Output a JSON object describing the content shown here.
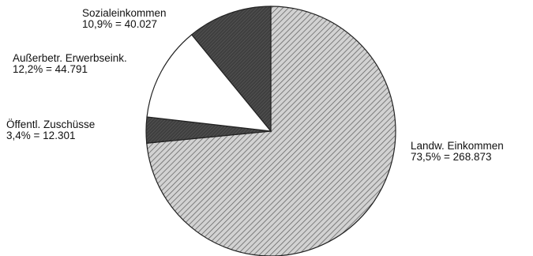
{
  "chart_data": {
    "type": "pie",
    "title": "",
    "slices": [
      {
        "name": "Landw. Einkommen",
        "percent_label": "73,5%",
        "value_label": "268.873",
        "value": 268873,
        "percent": 73.5,
        "fill": "hatch-light"
      },
      {
        "name": "Öffentl. Zuschüsse",
        "percent_label": "3,4%",
        "value_label": "12.301",
        "value": 12301,
        "percent": 3.4,
        "fill": "dark"
      },
      {
        "name": "Außerbetr. Erwerbseink.",
        "percent_label": "12,2%",
        "value_label": "44.791",
        "value": 44791,
        "percent": 12.2,
        "fill": "white"
      },
      {
        "name": "Sozialeinkommen",
        "percent_label": "10,9%",
        "value_label": "40.027",
        "value": 40027,
        "percent": 10.9,
        "fill": "dark"
      }
    ],
    "start": "12 o'clock",
    "direction": "clockwise",
    "colors": {
      "dark": "#4a4a4a",
      "hatch_light": "#cfcfcf",
      "white": "#ffffff",
      "outline": "#222222"
    }
  }
}
